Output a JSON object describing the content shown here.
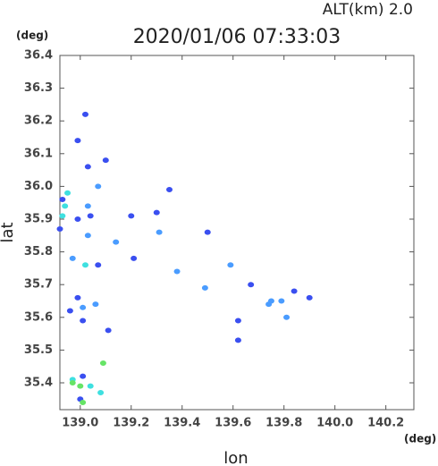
{
  "chart_data": {
    "type": "scatter",
    "title": "2020/01/06 07:33:03",
    "subtitle": "ALT(km) 2.0",
    "y_unit": "(deg)",
    "x_unit": "(deg)",
    "xlabel": "lon",
    "ylabel": "lat",
    "xlim": [
      138.92,
      140.31
    ],
    "ylim": [
      35.318,
      36.4
    ],
    "xticks": [
      {
        "value": 139,
        "label": "139.0"
      },
      139.2,
      139.4,
      139.6,
      139.8,
      {
        "value": 140,
        "label": "140.0"
      },
      140.2
    ],
    "yticks": [
      35.4,
      35.5,
      35.6,
      35.7,
      35.8,
      35.9,
      {
        "value": 36,
        "label": "36.0"
      },
      36.1,
      36.2,
      36.3,
      36.4
    ],
    "series": [
      {
        "color": "#3a4ff0",
        "x": [
          139.02,
          138.99,
          139.03,
          139.1,
          138.93,
          138.92,
          138.99,
          139.04,
          139.07,
          138.99,
          138.96,
          139.01,
          139.11,
          139.01,
          139.0,
          139.3,
          139.35,
          139.5,
          139.67,
          139.84,
          139.9,
          139.62,
          139.62,
          139.21,
          139.2
        ],
        "y": [
          36.22,
          36.14,
          36.06,
          36.08,
          35.96,
          35.87,
          35.9,
          35.91,
          35.76,
          35.66,
          35.62,
          35.59,
          35.56,
          35.42,
          35.35,
          35.92,
          35.99,
          35.86,
          35.7,
          35.68,
          35.66,
          35.59,
          35.53,
          35.78,
          35.91
        ]
      },
      {
        "color": "#4a9cff",
        "x": [
          139.03,
          139.07,
          139.03,
          139.06,
          138.97,
          139.01,
          139.74,
          139.75,
          139.79,
          139.81,
          139.49,
          139.38,
          139.59,
          139.14,
          139.31
        ],
        "y": [
          35.94,
          36.0,
          35.85,
          35.64,
          35.78,
          35.63,
          35.64,
          35.65,
          35.65,
          35.6,
          35.69,
          35.74,
          35.76,
          35.83,
          35.86
        ]
      },
      {
        "color": "#3ee0e0",
        "x": [
          138.94,
          138.93,
          138.95,
          139.02,
          138.97,
          139.08,
          139.04
        ],
        "y": [
          35.94,
          35.91,
          35.98,
          35.76,
          35.41,
          35.37,
          35.39
        ]
      },
      {
        "color": "#66e466",
        "x": [
          139.09,
          139.0,
          139.01,
          138.97
        ],
        "y": [
          35.46,
          35.39,
          35.34,
          35.4
        ]
      }
    ]
  }
}
